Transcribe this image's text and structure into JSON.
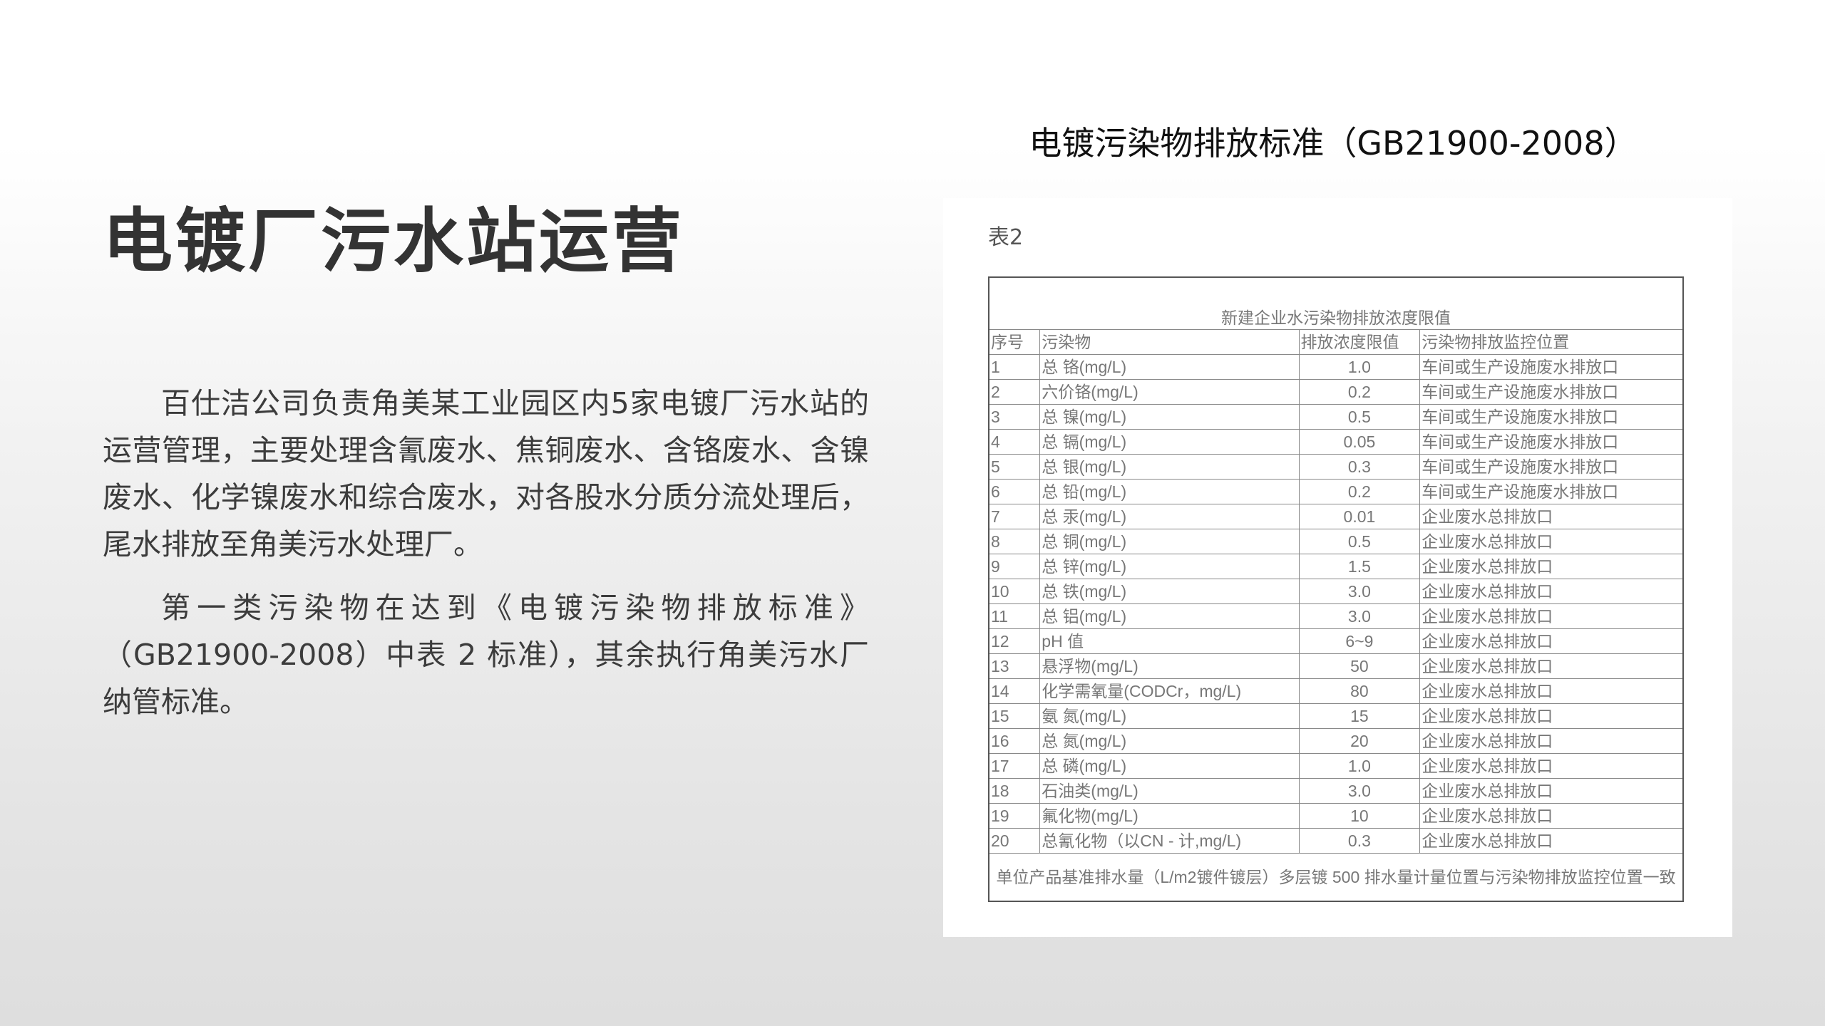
{
  "title": "电镀厂污水站运营",
  "paragraphs": [
    "百仕洁公司负责角美某工业园区内5家电镀厂污水站的运营管理，主要处理含氰废水、焦铜废水、含铬废水、含镍废水、化学镍废水和综合废水，对各股水分质分流处理后，尾水排放至角美污水处理厂。",
    "第一类污染物在达到《电镀污染物排放标准》（GB21900-2008）中表 2 标准），其余执行角美污水厂纳管标准。"
  ],
  "standard_title": "电镀污染物排放标准（GB21900-2008）",
  "table": {
    "label": "表2",
    "caption": "新建企业水污染物排放浓度限值",
    "headers": [
      "序号",
      "污染物",
      "排放浓度限值",
      "污染物排放监控位置"
    ],
    "rows": [
      [
        "1",
        "总 铬(mg/L)",
        "1.0",
        "车间或生产设施废水排放口"
      ],
      [
        "2",
        "六价铬(mg/L)",
        "0.2",
        "车间或生产设施废水排放口"
      ],
      [
        "3",
        "总 镍(mg/L)",
        "0.5",
        "车间或生产设施废水排放口"
      ],
      [
        "4",
        "总 镉(mg/L)",
        "0.05",
        "车间或生产设施废水排放口"
      ],
      [
        "5",
        "总 银(mg/L)",
        "0.3",
        "车间或生产设施废水排放口"
      ],
      [
        "6",
        "总 铅(mg/L)",
        "0.2",
        "车间或生产设施废水排放口"
      ],
      [
        "7",
        "总 汞(mg/L)",
        "0.01",
        "企业废水总排放口"
      ],
      [
        "8",
        "总 铜(mg/L)",
        "0.5",
        "企业废水总排放口"
      ],
      [
        "9",
        "总 锌(mg/L)",
        "1.5",
        "企业废水总排放口"
      ],
      [
        "10",
        "总 铁(mg/L)",
        "3.0",
        "企业废水总排放口"
      ],
      [
        "11",
        "总 铝(mg/L)",
        "3.0",
        "企业废水总排放口"
      ],
      [
        "12",
        "pH 值",
        "6~9",
        "企业废水总排放口"
      ],
      [
        "13",
        "悬浮物(mg/L)",
        "50",
        "企业废水总排放口"
      ],
      [
        "14",
        "化学需氧量(CODCr，mg/L)",
        "80",
        "企业废水总排放口"
      ],
      [
        "15",
        "氨 氮(mg/L)",
        "15",
        "企业废水总排放口"
      ],
      [
        "16",
        "总 氮(mg/L)",
        "20",
        "企业废水总排放口"
      ],
      [
        "17",
        "总 磷(mg/L)",
        "1.0",
        "企业废水总排放口"
      ],
      [
        "18",
        "石油类(mg/L)",
        "3.0",
        "企业废水总排放口"
      ],
      [
        "19",
        "氟化物(mg/L)",
        "10",
        "企业废水总排放口"
      ],
      [
        "20",
        "总氰化物（以CN - 计,mg/L)",
        "0.3",
        "企业废水总排放口"
      ]
    ],
    "footer": "单位产品基准排水量（L/m2镀件镀层）多层镀 500 排水量计量位置与污染物排放监控位置一致"
  }
}
